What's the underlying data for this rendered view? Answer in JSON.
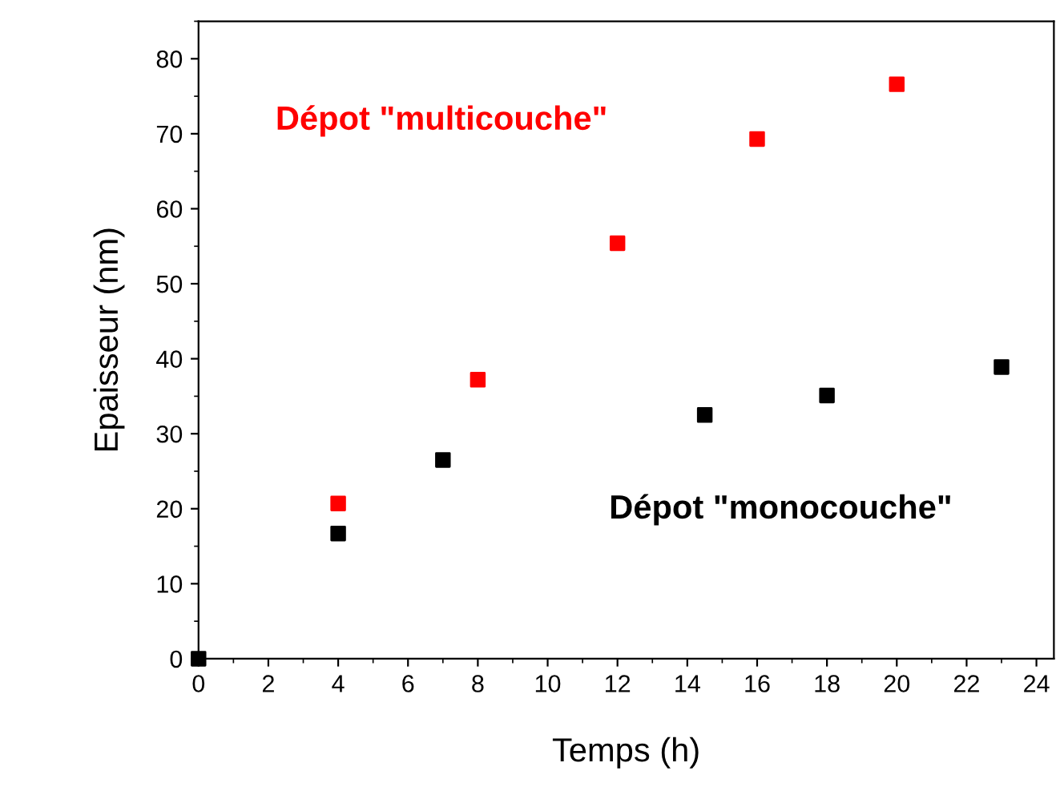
{
  "chart_data": {
    "type": "scatter",
    "xlabel": "Temps (h)",
    "ylabel": "Epaisseur (nm)",
    "marker": "square",
    "grid": false,
    "legend": false,
    "xlim": [
      0,
      24.5
    ],
    "ylim": [
      0,
      85
    ],
    "xticks": [
      0,
      2,
      4,
      6,
      8,
      10,
      12,
      14,
      16,
      18,
      20,
      22,
      24
    ],
    "yticks": [
      0,
      10,
      20,
      30,
      40,
      50,
      60,
      70,
      80
    ],
    "series": [
      {
        "name": "Dépot \"multicouche\"",
        "color": "#ff0000",
        "x": [
          4,
          8,
          12,
          16,
          20
        ],
        "values": [
          20.7,
          37.2,
          55.4,
          69.3,
          76.6
        ]
      },
      {
        "name": "Dépot \"monocouche\"",
        "color": "#000000",
        "x": [
          0,
          4,
          7,
          14.5,
          18,
          23
        ],
        "values": [
          0,
          16.7,
          26.5,
          32.5,
          35.1,
          38.9
        ]
      }
    ]
  }
}
